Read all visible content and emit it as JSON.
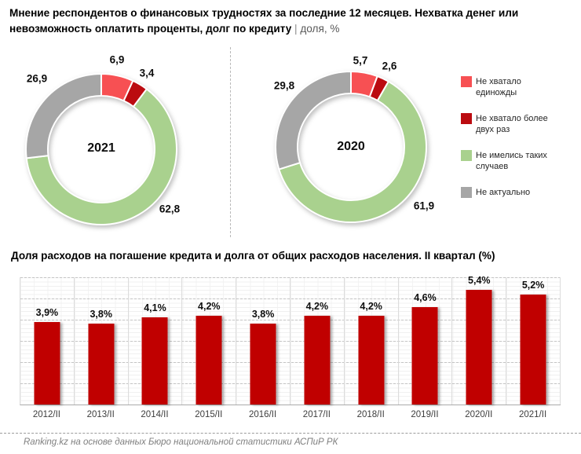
{
  "header": {
    "title_line1": "Мнение респондентов о финансовых трудностях за последние 12 месяцев. Нехватка денег или",
    "title_line2": "невозможность оплатить проценты, долг по кредиту",
    "title_sep": "|",
    "title_unit": "доля, %"
  },
  "colors": {
    "red_light": "#F75053",
    "red_dark": "#BB0B10",
    "green": "#A9D18E",
    "gray": "#A6A6A6",
    "bar_red": "#C00000"
  },
  "chart_data": [
    {
      "type": "pie",
      "variant": "donut",
      "center_label": "2021",
      "segments": [
        {
          "label": "Не хватало единожды",
          "value": 6.9,
          "display": "6,9",
          "color": "#F75053"
        },
        {
          "label": "Не хватало более двух раз",
          "value": 3.4,
          "display": "3,4",
          "color": "#BB0B10"
        },
        {
          "label": "Не имелись таких случаев",
          "value": 62.8,
          "display": "62,8",
          "color": "#A9D18E"
        },
        {
          "label": "Не актуально",
          "value": 26.9,
          "display": "26,9",
          "color": "#A6A6A6"
        }
      ]
    },
    {
      "type": "pie",
      "variant": "donut",
      "center_label": "2020",
      "segments": [
        {
          "label": "Не хватало единожды",
          "value": 5.7,
          "display": "5,7",
          "color": "#F75053"
        },
        {
          "label": "Не хватало более двух раз",
          "value": 2.6,
          "display": "2,6",
          "color": "#BB0B10"
        },
        {
          "label": "Не имелись таких случаев",
          "value": 61.9,
          "display": "61,9",
          "color": "#A9D18E"
        },
        {
          "label": "Не актуально",
          "value": 29.8,
          "display": "29,8",
          "color": "#A6A6A6"
        }
      ]
    },
    {
      "type": "bar",
      "title": "Доля расходов на погашение кредита и долга от общих расходов населения. II квартал (%)",
      "categories": [
        "2012/II",
        "2013/II",
        "2014/II",
        "2015/II",
        "2016/II",
        "2017/II",
        "2018/II",
        "2019/II",
        "2020/II",
        "2021/II"
      ],
      "values": [
        3.9,
        3.8,
        4.1,
        4.2,
        3.8,
        4.2,
        4.2,
        4.6,
        5.4,
        5.2
      ],
      "labels": [
        "3,9%",
        "3,8%",
        "4,1%",
        "4,2%",
        "3,8%",
        "4,2%",
        "4,2%",
        "4,6%",
        "5,4%",
        "5,2%"
      ],
      "bar_color": "#C00000",
      "ylim": [
        0,
        6
      ],
      "grid": "major dashed every 1%, minor solid every 0.2%",
      "legend_position": "none"
    }
  ],
  "legend": {
    "items": [
      {
        "label": "Не хватало единожды",
        "color": "#F75053"
      },
      {
        "label": "Не хватало более двух раз",
        "color": "#BB0B10"
      },
      {
        "label": "Не имелись таких случаев",
        "color": "#A9D18E"
      },
      {
        "label": "Не актуально",
        "color": "#A6A6A6"
      }
    ]
  },
  "footer": {
    "source": "Ranking.kz на основе данных Бюро национальной статистики АСПиР РК"
  }
}
